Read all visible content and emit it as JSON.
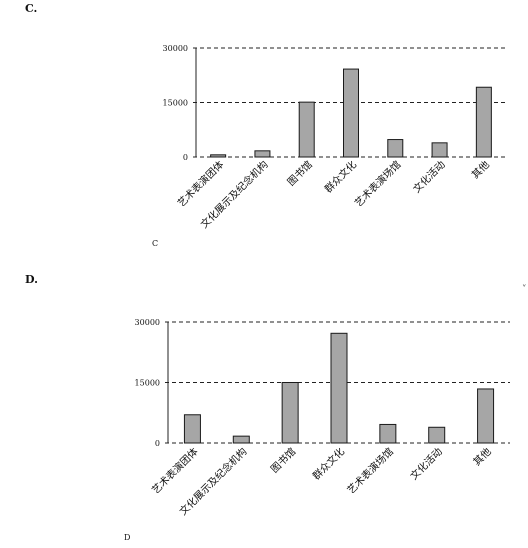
{
  "option_c": {
    "label": "C.",
    "caption": "C"
  },
  "option_d": {
    "label": "D.",
    "caption": "D"
  },
  "stray_mark": "˅",
  "colors": {
    "bar_fill": "#a6a6a6",
    "bar_stroke": "#1a1a1a",
    "axis": "#222222"
  },
  "chart_data": [
    {
      "type": "bar",
      "title": "",
      "xlabel": "",
      "ylabel": "",
      "ylim": [
        0,
        30000
      ],
      "yticks": [
        "0",
        "15000",
        "30000"
      ],
      "grid": "dashed horizontal",
      "categories": [
        "艺术表演团体",
        "文化展示及纪念机构",
        "图书馆",
        "群众文化",
        "艺术表演场馆",
        "文化活动",
        "其他"
      ],
      "values": [
        600,
        1700,
        15100,
        24200,
        4800,
        3900,
        19200
      ]
    },
    {
      "type": "bar",
      "title": "",
      "xlabel": "",
      "ylabel": "",
      "ylim": [
        0,
        30000
      ],
      "yticks": [
        "0",
        "15000",
        "30000"
      ],
      "grid": "dashed horizontal",
      "categories": [
        "艺术表演团体",
        "文化展示及纪念机构",
        "图书馆",
        "群众文化",
        "艺术表演场馆",
        "文化活动",
        "其他"
      ],
      "values": [
        7000,
        1700,
        15000,
        27200,
        4600,
        3900,
        13400
      ]
    }
  ]
}
